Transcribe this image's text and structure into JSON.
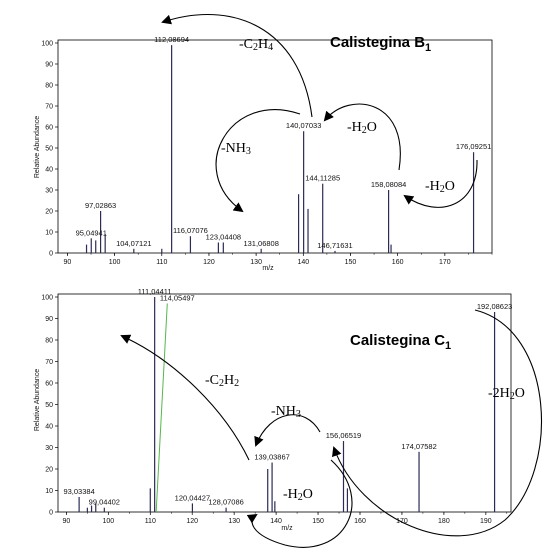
{
  "chart_data": [
    {
      "type": "bar",
      "title": "Calistegina B",
      "title_subscript": "1",
      "xlabel": "m/z",
      "ylabel": "Relative Abundance",
      "xlim": [
        88,
        180
      ],
      "ylim": [
        0,
        100
      ],
      "xticks": [
        90,
        100,
        110,
        120,
        130,
        140,
        150,
        160,
        170
      ],
      "yticks": [
        0,
        10,
        20,
        30,
        40,
        50,
        60,
        70,
        80,
        90,
        100
      ],
      "peaks": [
        {
          "x": 94.05,
          "y": 4
        },
        {
          "x": 95.04941,
          "y": 7,
          "label": "95,04941"
        },
        {
          "x": 96.0,
          "y": 6
        },
        {
          "x": 97.02863,
          "y": 20,
          "label": "97,02863"
        },
        {
          "x": 98.0,
          "y": 9
        },
        {
          "x": 104.07121,
          "y": 2,
          "label": "104,07121"
        },
        {
          "x": 110.0,
          "y": 2
        },
        {
          "x": 112.08694,
          "y": 99,
          "label": "112,08694"
        },
        {
          "x": 116.07076,
          "y": 8,
          "label": "116,07076"
        },
        {
          "x": 122.0,
          "y": 5
        },
        {
          "x": 123.04408,
          "y": 5,
          "label": "123,04408"
        },
        {
          "x": 131.06808,
          "y": 2,
          "label": "131,06808"
        },
        {
          "x": 139.0,
          "y": 28
        },
        {
          "x": 140.07033,
          "y": 58,
          "label": "140,07033"
        },
        {
          "x": 141.0,
          "y": 21
        },
        {
          "x": 144.11285,
          "y": 33,
          "label": "144,11285"
        },
        {
          "x": 146.71631,
          "y": 1,
          "label": "146,71631"
        },
        {
          "x": 158.08084,
          "y": 30,
          "label": "158,08084"
        },
        {
          "x": 158.6,
          "y": 4
        },
        {
          "x": 176.09251,
          "y": 48,
          "label": "176,09251"
        }
      ],
      "annotations": [
        {
          "text": "-C",
          "sub": "2",
          "text2": "H",
          "sub2": "4"
        },
        {
          "text": "-NH",
          "sub": "3"
        },
        {
          "text": "-H",
          "sub": "2",
          "text2": "O"
        },
        {
          "text": "-H",
          "sub": "2",
          "text2": "O"
        }
      ]
    },
    {
      "type": "bar",
      "title": "Calistegina C",
      "title_subscript": "1",
      "xlabel": "m/z",
      "ylabel": "Relative Abundance",
      "xlim": [
        88,
        196
      ],
      "ylim": [
        0,
        100
      ],
      "xticks": [
        90,
        100,
        110,
        120,
        130,
        140,
        150,
        160,
        170,
        180,
        190
      ],
      "yticks": [
        0,
        10,
        20,
        30,
        40,
        50,
        60,
        70,
        80,
        90,
        100
      ],
      "peaks": [
        {
          "x": 93.03384,
          "y": 7,
          "label": "93,03384"
        },
        {
          "x": 95.0,
          "y": 2
        },
        {
          "x": 96.0,
          "y": 3
        },
        {
          "x": 97.0,
          "y": 4
        },
        {
          "x": 99.04402,
          "y": 2,
          "label": "99,04402"
        },
        {
          "x": 110.0,
          "y": 11
        },
        {
          "x": 111.04411,
          "y": 100,
          "label": "111,04411"
        },
        {
          "x": 114.05497,
          "y": 97,
          "label": "114,05497",
          "line_to": 111.04411
        },
        {
          "x": 120.04427,
          "y": 4,
          "label": "120,04427"
        },
        {
          "x": 128.07086,
          "y": 2,
          "label": "128,07086"
        },
        {
          "x": 138.0,
          "y": 20
        },
        {
          "x": 139.03867,
          "y": 23,
          "label": "139,03867"
        },
        {
          "x": 139.7,
          "y": 5
        },
        {
          "x": 156.06519,
          "y": 33,
          "label": "156,06519"
        },
        {
          "x": 157.0,
          "y": 11
        },
        {
          "x": 174.07582,
          "y": 28,
          "label": "174,07582"
        },
        {
          "x": 192.08623,
          "y": 93,
          "label": "192,08623"
        }
      ],
      "annotations": [
        {
          "text": "-C",
          "sub": "2",
          "text2": "H",
          "sub2": "2"
        },
        {
          "text": "-NH",
          "sub": "3"
        },
        {
          "text": "-H",
          "sub": "2",
          "text2": "O"
        },
        {
          "text": "-2H",
          "sub": "2",
          "text2": "O"
        }
      ]
    }
  ]
}
